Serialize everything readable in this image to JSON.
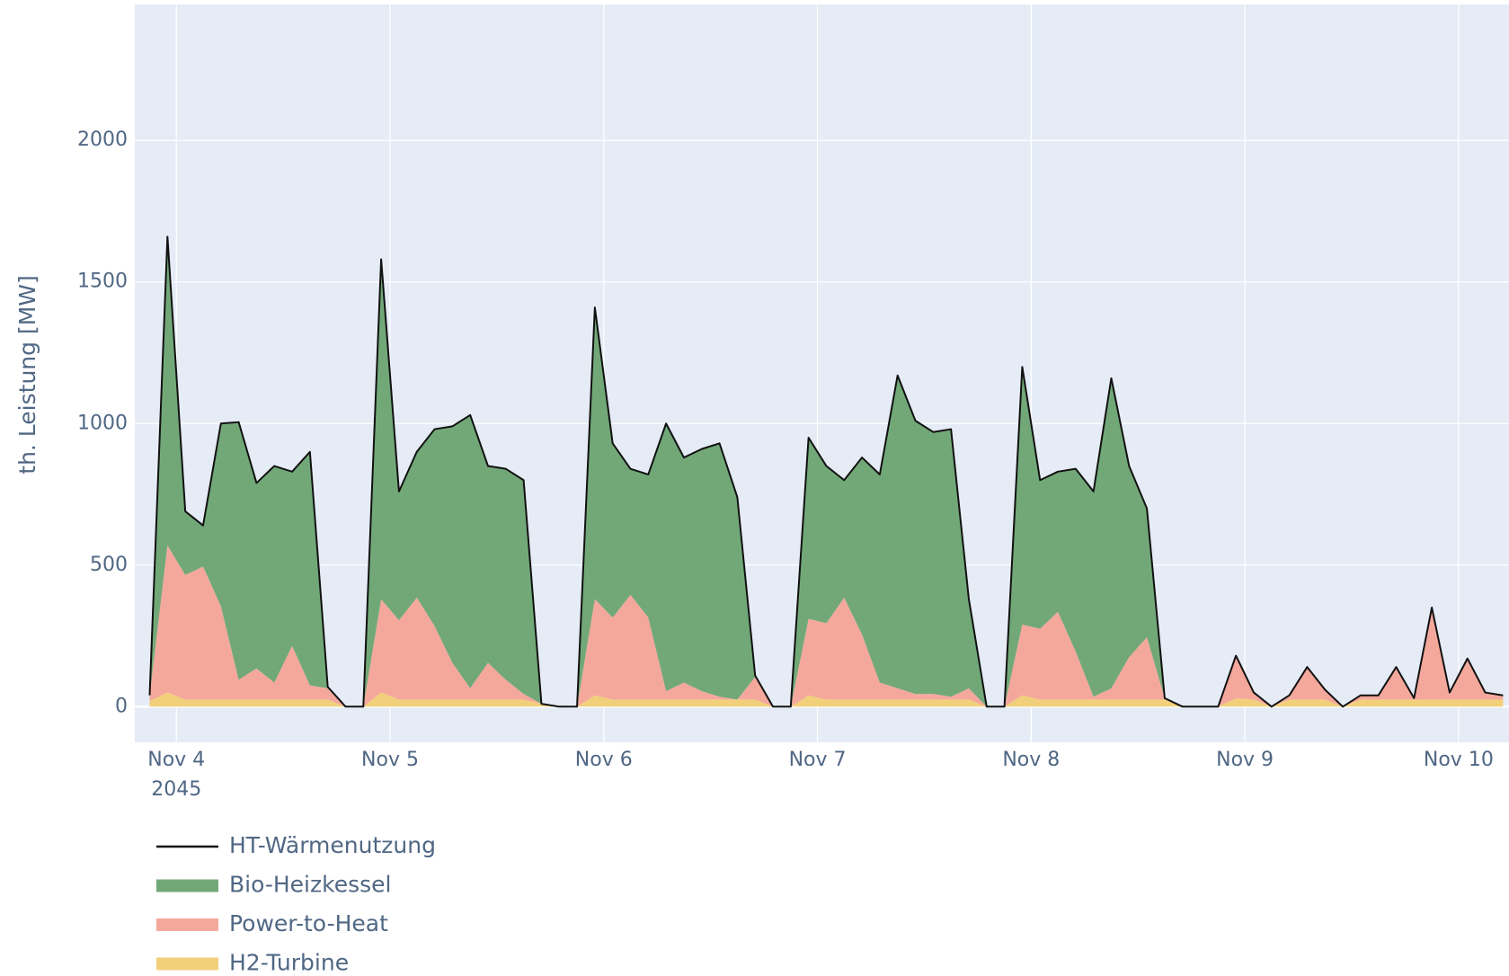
{
  "chart_data": {
    "type": "area",
    "y_label": "th. Leistung [MW]",
    "x": [
      "2045-11-03T21:00",
      "2045-11-03T23:00",
      "2045-11-04T01:00",
      "2045-11-04T03:00",
      "2045-11-04T05:00",
      "2045-11-04T07:00",
      "2045-11-04T09:00",
      "2045-11-04T11:00",
      "2045-11-04T13:00",
      "2045-11-04T15:00",
      "2045-11-04T17:00",
      "2045-11-04T19:00",
      "2045-11-04T21:00",
      "2045-11-04T23:00",
      "2045-11-05T01:00",
      "2045-11-05T03:00",
      "2045-11-05T05:00",
      "2045-11-05T07:00",
      "2045-11-05T09:00",
      "2045-11-05T11:00",
      "2045-11-05T13:00",
      "2045-11-05T15:00",
      "2045-11-05T17:00",
      "2045-11-05T19:00",
      "2045-11-05T21:00",
      "2045-11-05T23:00",
      "2045-11-06T01:00",
      "2045-11-06T03:00",
      "2045-11-06T05:00",
      "2045-11-06T07:00",
      "2045-11-06T09:00",
      "2045-11-06T11:00",
      "2045-11-06T13:00",
      "2045-11-06T15:00",
      "2045-11-06T17:00",
      "2045-11-06T19:00",
      "2045-11-06T21:00",
      "2045-11-06T23:00",
      "2045-11-07T01:00",
      "2045-11-07T03:00",
      "2045-11-07T05:00",
      "2045-11-07T07:00",
      "2045-11-07T09:00",
      "2045-11-07T11:00",
      "2045-11-07T13:00",
      "2045-11-07T15:00",
      "2045-11-07T17:00",
      "2045-11-07T19:00",
      "2045-11-07T21:00",
      "2045-11-07T23:00",
      "2045-11-08T01:00",
      "2045-11-08T03:00",
      "2045-11-08T05:00",
      "2045-11-08T07:00",
      "2045-11-08T09:00",
      "2045-11-08T11:00",
      "2045-11-08T13:00",
      "2045-11-08T15:00",
      "2045-11-08T17:00",
      "2045-11-08T19:00",
      "2045-11-08T21:00",
      "2045-11-08T23:00",
      "2045-11-09T01:00",
      "2045-11-09T03:00",
      "2045-11-09T05:00",
      "2045-11-09T07:00",
      "2045-11-09T09:00",
      "2045-11-09T11:00",
      "2045-11-09T13:00",
      "2045-11-09T15:00",
      "2045-11-09T17:00",
      "2045-11-09T19:00",
      "2045-11-09T21:00",
      "2045-11-09T23:00",
      "2045-11-10T01:00",
      "2045-11-10T03:00",
      "2045-11-10T05:00"
    ],
    "series": [
      {
        "name": "HT-Wärmenutzung",
        "kind": "line",
        "color": "#111111",
        "values": [
          40,
          1660,
          690,
          640,
          1000,
          1005,
          790,
          850,
          830,
          900,
          70,
          0,
          0,
          1580,
          760,
          900,
          980,
          990,
          1030,
          850,
          840,
          800,
          10,
          0,
          0,
          1410,
          930,
          840,
          820,
          1000,
          880,
          910,
          930,
          740,
          110,
          0,
          0,
          950,
          850,
          800,
          880,
          820,
          1170,
          1010,
          970,
          980,
          380,
          0,
          0,
          1200,
          800,
          830,
          840,
          760,
          1160,
          850,
          700,
          30,
          0,
          0,
          0,
          180,
          50,
          0,
          40,
          140,
          60,
          0,
          40,
          40,
          140,
          30,
          350,
          50,
          170,
          50,
          40
        ]
      },
      {
        "name": "Bio-Heizkessel",
        "kind": "area",
        "color": "#72a878",
        "values": [
          0,
          1090,
          225,
          145,
          645,
          910,
          655,
          765,
          615,
          825,
          5,
          0,
          0,
          1200,
          455,
          515,
          695,
          835,
          965,
          695,
          745,
          755,
          0,
          0,
          0,
          1030,
          615,
          445,
          505,
          945,
          795,
          855,
          895,
          715,
          5,
          0,
          0,
          640,
          555,
          415,
          625,
          735,
          1105,
          965,
          925,
          945,
          315,
          0,
          0,
          910,
          525,
          495,
          645,
          725,
          1095,
          675,
          455,
          0,
          0,
          0,
          0,
          0,
          0,
          0,
          0,
          0,
          0,
          0,
          0,
          0,
          0,
          0,
          0,
          0,
          0,
          0,
          0
        ]
      },
      {
        "name": "Power-to-Heat",
        "kind": "area",
        "color": "#f4a89c",
        "values": [
          20,
          520,
          440,
          470,
          330,
          70,
          110,
          60,
          190,
          50,
          40,
          0,
          0,
          330,
          280,
          360,
          260,
          130,
          40,
          130,
          70,
          20,
          0,
          0,
          0,
          340,
          290,
          370,
          290,
          30,
          60,
          30,
          10,
          0,
          80,
          0,
          0,
          270,
          270,
          360,
          230,
          60,
          40,
          20,
          20,
          10,
          40,
          0,
          0,
          250,
          250,
          310,
          170,
          10,
          40,
          150,
          220,
          5,
          0,
          0,
          0,
          150,
          25,
          0,
          15,
          115,
          35,
          0,
          15,
          15,
          115,
          5,
          325,
          25,
          145,
          25,
          15
        ]
      },
      {
        "name": "H2-Turbine",
        "kind": "area",
        "color": "#f2cf7a",
        "values": [
          20,
          50,
          25,
          25,
          25,
          25,
          25,
          25,
          25,
          25,
          25,
          0,
          0,
          50,
          25,
          25,
          25,
          25,
          25,
          25,
          25,
          25,
          10,
          0,
          0,
          40,
          25,
          25,
          25,
          25,
          25,
          25,
          25,
          25,
          25,
          0,
          0,
          40,
          25,
          25,
          25,
          25,
          25,
          25,
          25,
          25,
          25,
          0,
          0,
          40,
          25,
          25,
          25,
          25,
          25,
          25,
          25,
          25,
          0,
          0,
          0,
          30,
          25,
          0,
          25,
          25,
          25,
          0,
          25,
          25,
          25,
          25,
          25,
          25,
          25,
          25,
          25
        ]
      }
    ],
    "xlim": [
      "2045-11-03T19:20",
      "2045-11-10T05:40"
    ],
    "xticks": [
      {
        "value": "2045-11-04",
        "label": "Nov 4"
      },
      {
        "value": "2045-11-05",
        "label": "Nov 5"
      },
      {
        "value": "2045-11-06",
        "label": "Nov 6"
      },
      {
        "value": "2045-11-07",
        "label": "Nov 7"
      },
      {
        "value": "2045-11-08",
        "label": "Nov 8"
      },
      {
        "value": "2045-11-09",
        "label": "Nov 9"
      },
      {
        "value": "2045-11-10",
        "label": "Nov 10"
      }
    ],
    "xtick_year": "2045",
    "ylim": [
      -126,
      2480
    ],
    "yticks": [
      0,
      500,
      1000,
      1500,
      2000
    ],
    "grid": true,
    "legend": "bottom-left"
  }
}
